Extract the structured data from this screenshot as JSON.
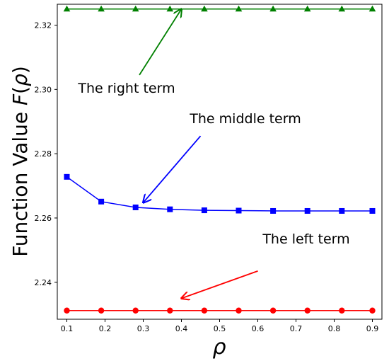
{
  "chart_data": {
    "type": "line",
    "title": "",
    "xlabel": "ρ",
    "ylabel_prefix": "Function Value ",
    "ylabel_func": "F",
    "ylabel_open": "(",
    "ylabel_var": "ρ",
    "ylabel_close": ")",
    "xlim": [
      0.075,
      0.925
    ],
    "ylim": [
      2.2285,
      2.3265
    ],
    "x": [
      0.1,
      0.19,
      0.28,
      0.37,
      0.46,
      0.55,
      0.64,
      0.73,
      0.82,
      0.9
    ],
    "xticks": [
      0.1,
      0.2,
      0.3,
      0.4,
      0.5,
      0.6,
      0.7,
      0.8,
      0.9
    ],
    "xtick_labels": [
      "0.1",
      "0.2",
      "0.3",
      "0.4",
      "0.5",
      "0.6",
      "0.7",
      "0.8",
      "0.9"
    ],
    "yticks": [
      2.24,
      2.26,
      2.28,
      2.3,
      2.32
    ],
    "ytick_labels": [
      "2.24",
      "2.26",
      "2.28",
      "2.30",
      "2.32"
    ],
    "grid": false,
    "series": [
      {
        "color": "#008000",
        "marker": "triangle",
        "values": [
          2.325,
          2.325,
          2.325,
          2.325,
          2.325,
          2.325,
          2.325,
          2.325,
          2.325,
          2.325
        ]
      },
      {
        "color": "#0000ff",
        "marker": "square",
        "values": [
          2.2728,
          2.2651,
          2.2633,
          2.2627,
          2.2624,
          2.2623,
          2.2622,
          2.2622,
          2.2622,
          2.2622
        ]
      },
      {
        "color": "#ff0000",
        "marker": "circle",
        "values": [
          2.2312,
          2.2312,
          2.2312,
          2.2312,
          2.2312,
          2.2312,
          2.2312,
          2.2312,
          2.2312,
          2.2312
        ]
      }
    ],
    "annotations": [
      {
        "text": "The right term",
        "color": "#008000",
        "target": [
          0.4,
          2.325
        ],
        "from": [
          0.29,
          2.3045
        ]
      },
      {
        "text": "The middle term",
        "color": "#0000ff",
        "target": [
          0.3,
          2.2648
        ],
        "from": [
          0.45,
          2.2855
        ]
      },
      {
        "text": "The left term",
        "color": "#ff0000",
        "target": [
          0.4,
          2.235
        ],
        "from": [
          0.6,
          2.2435
        ]
      }
    ]
  }
}
